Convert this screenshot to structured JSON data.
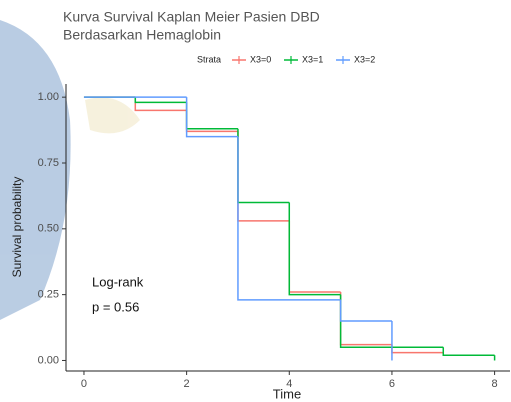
{
  "chart_data": {
    "type": "step",
    "title": "Kurva Survival Kaplan Meier Pasien DBD",
    "subtitle": "Berdasarkan Hemaglobin",
    "legend_title": "Strata",
    "x_label": "Time",
    "y_label": "Survival probability",
    "annotations": [
      "Log-rank",
      "p = 0.56"
    ],
    "xlim": [
      -0.35,
      8.3
    ],
    "ylim": [
      -0.04,
      1.05
    ],
    "xticks": [
      0,
      2,
      4,
      6,
      8
    ],
    "yticks": [
      {
        "value": 0,
        "label": "0.00"
      },
      {
        "value": 0.25,
        "label": "0.25"
      },
      {
        "value": 0.5,
        "label": "0.50"
      },
      {
        "value": 0.75,
        "label": "0.75"
      },
      {
        "value": 1,
        "label": "1.00"
      }
    ],
    "series": [
      {
        "name": "X3=0",
        "color": "#F8766D",
        "x": [
          0,
          1,
          2,
          3,
          4,
          5,
          6,
          7
        ],
        "values": [
          1,
          0.95,
          0.87,
          0.53,
          0.26,
          0.06,
          0.03,
          0.03
        ]
      },
      {
        "name": "X3=1",
        "color": "#00BA38",
        "x": [
          0,
          1,
          2,
          3,
          4,
          5,
          7,
          8
        ],
        "values": [
          1,
          0.98,
          0.88,
          0.6,
          0.25,
          0.05,
          0.02,
          0.0
        ]
      },
      {
        "name": "X3=2",
        "color": "#619CFF",
        "x": [
          0,
          2,
          3,
          5,
          6
        ],
        "values": [
          1,
          0.85,
          0.23,
          0.15,
          0.0
        ]
      }
    ]
  }
}
